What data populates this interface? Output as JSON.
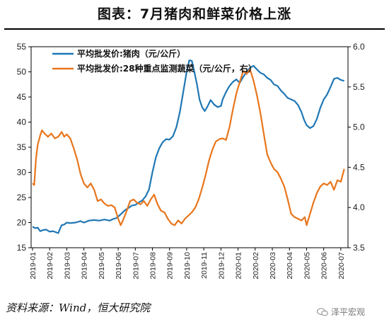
{
  "header": {
    "title": "图表：7月猪肉和鲜菜价格上涨"
  },
  "footer": {
    "source": "资料来源：Wind，恒大研究院",
    "watermark": "泽平宏观"
  },
  "colors": {
    "pork": "#1f77b4",
    "veg": "#e8761c",
    "axis": "#000000"
  },
  "chart_data": {
    "type": "line",
    "x_labels": [
      "2019-01",
      "2019-02",
      "2019-03",
      "2019-04",
      "2019-05",
      "2019-06",
      "2019-07",
      "2019-08",
      "2019-09",
      "2019-10",
      "2019-11",
      "2019-12",
      "2020-01",
      "2020-02",
      "2020-03",
      "2020-04",
      "2020-05",
      "2020-06",
      "2020-07"
    ],
    "y_left": {
      "min": 15,
      "max": 55,
      "ticks": [
        "15",
        "20",
        "25",
        "30",
        "35",
        "40",
        "45",
        "50",
        "55"
      ]
    },
    "y_right": {
      "min": 3.5,
      "max": 6.0,
      "ticks": [
        "3.5",
        "4.0",
        "4.5",
        "5.0",
        "5.5",
        "6.0"
      ]
    },
    "legend_position": "top-left",
    "series": [
      {
        "name": "平均批发价:猪肉（元/公斤）",
        "axis": "left",
        "points": [
          [
            0,
            19.2
          ],
          [
            0.15,
            18.9
          ],
          [
            0.3,
            19.0
          ],
          [
            0.45,
            18.3
          ],
          [
            0.6,
            18.5
          ],
          [
            0.8,
            18.6
          ],
          [
            1.0,
            18.2
          ],
          [
            1.2,
            18.3
          ],
          [
            1.35,
            18.1
          ],
          [
            1.5,
            17.9
          ],
          [
            1.6,
            18.7
          ],
          [
            1.7,
            19.5
          ],
          [
            1.85,
            19.6
          ],
          [
            2.0,
            20.0
          ],
          [
            2.2,
            19.9
          ],
          [
            2.5,
            20.0
          ],
          [
            2.8,
            20.3
          ],
          [
            3.0,
            20.0
          ],
          [
            3.3,
            20.4
          ],
          [
            3.6,
            20.5
          ],
          [
            3.9,
            20.4
          ],
          [
            4.2,
            20.6
          ],
          [
            4.5,
            20.4
          ],
          [
            4.7,
            20.7
          ],
          [
            4.9,
            20.9
          ],
          [
            5.0,
            21.2
          ],
          [
            5.2,
            21.8
          ],
          [
            5.4,
            22.5
          ],
          [
            5.6,
            22.9
          ],
          [
            5.8,
            23.4
          ],
          [
            6.0,
            23.5
          ],
          [
            6.2,
            24.0
          ],
          [
            6.4,
            24.4
          ],
          [
            6.6,
            25.2
          ],
          [
            6.8,
            26.6
          ],
          [
            7.0,
            30.0
          ],
          [
            7.2,
            33.0
          ],
          [
            7.4,
            34.8
          ],
          [
            7.6,
            36.0
          ],
          [
            7.8,
            36.6
          ],
          [
            8.0,
            36.5
          ],
          [
            8.2,
            37.2
          ],
          [
            8.4,
            39.0
          ],
          [
            8.6,
            42.0
          ],
          [
            8.8,
            46.0
          ],
          [
            9.0,
            50.0
          ],
          [
            9.15,
            52.3
          ],
          [
            9.3,
            52.2
          ],
          [
            9.45,
            50.0
          ],
          [
            9.6,
            47.5
          ],
          [
            9.75,
            44.5
          ],
          [
            9.9,
            43.0
          ],
          [
            10.05,
            42.2
          ],
          [
            10.2,
            43.0
          ],
          [
            10.4,
            44.4
          ],
          [
            10.6,
            43.5
          ],
          [
            10.8,
            43.0
          ],
          [
            11.0,
            43.2
          ],
          [
            11.1,
            44.5
          ],
          [
            11.3,
            46.0
          ],
          [
            11.5,
            47.2
          ],
          [
            11.7,
            48.0
          ],
          [
            11.9,
            48.5
          ],
          [
            12.1,
            47.8
          ],
          [
            12.3,
            49.0
          ],
          [
            12.5,
            50.0
          ],
          [
            12.7,
            50.8
          ],
          [
            12.9,
            51.2
          ],
          [
            13.1,
            50.5
          ],
          [
            13.3,
            49.8
          ],
          [
            13.5,
            49.5
          ],
          [
            13.7,
            48.8
          ],
          [
            13.9,
            48.4
          ],
          [
            14.1,
            47.5
          ],
          [
            14.3,
            47.2
          ],
          [
            14.5,
            46.3
          ],
          [
            14.7,
            45.6
          ],
          [
            14.9,
            44.8
          ],
          [
            15.1,
            44.5
          ],
          [
            15.3,
            44.2
          ],
          [
            15.5,
            43.4
          ],
          [
            15.7,
            42.0
          ],
          [
            15.85,
            40.5
          ],
          [
            16.0,
            39.4
          ],
          [
            16.2,
            38.8
          ],
          [
            16.4,
            39.2
          ],
          [
            16.6,
            40.6
          ],
          [
            16.8,
            42.8
          ],
          [
            17.0,
            44.5
          ],
          [
            17.2,
            45.5
          ],
          [
            17.4,
            47.0
          ],
          [
            17.6,
            48.6
          ],
          [
            17.8,
            48.8
          ],
          [
            18.0,
            48.4
          ],
          [
            18.2,
            48.2
          ]
        ]
      },
      {
        "name": "平均批发价:28种重点监测蔬菜（元/公斤，右）",
        "axis": "right",
        "points": [
          [
            0,
            4.3
          ],
          [
            0.1,
            4.28
          ],
          [
            0.2,
            4.6
          ],
          [
            0.3,
            4.78
          ],
          [
            0.45,
            4.9
          ],
          [
            0.55,
            4.96
          ],
          [
            0.7,
            4.92
          ],
          [
            0.9,
            4.88
          ],
          [
            1.1,
            4.92
          ],
          [
            1.3,
            4.86
          ],
          [
            1.5,
            4.88
          ],
          [
            1.7,
            4.94
          ],
          [
            1.85,
            4.88
          ],
          [
            2.0,
            4.91
          ],
          [
            2.2,
            4.86
          ],
          [
            2.4,
            4.74
          ],
          [
            2.6,
            4.6
          ],
          [
            2.8,
            4.42
          ],
          [
            3.0,
            4.3
          ],
          [
            3.2,
            4.25
          ],
          [
            3.4,
            4.3
          ],
          [
            3.6,
            4.22
          ],
          [
            3.8,
            4.08
          ],
          [
            4.0,
            4.1
          ],
          [
            4.2,
            4.05
          ],
          [
            4.4,
            4.02
          ],
          [
            4.6,
            4.03
          ],
          [
            4.8,
            4.0
          ],
          [
            5.0,
            3.86
          ],
          [
            5.15,
            3.78
          ],
          [
            5.3,
            3.85
          ],
          [
            5.5,
            3.96
          ],
          [
            5.7,
            4.08
          ],
          [
            5.9,
            4.1
          ],
          [
            6.1,
            4.06
          ],
          [
            6.3,
            4.04
          ],
          [
            6.5,
            4.08
          ],
          [
            6.7,
            4.02
          ],
          [
            6.9,
            4.1
          ],
          [
            7.1,
            4.16
          ],
          [
            7.3,
            4.04
          ],
          [
            7.5,
            3.96
          ],
          [
            7.7,
            3.94
          ],
          [
            7.9,
            3.86
          ],
          [
            8.1,
            3.8
          ],
          [
            8.3,
            3.78
          ],
          [
            8.5,
            3.84
          ],
          [
            8.7,
            3.8
          ],
          [
            8.9,
            3.86
          ],
          [
            9.1,
            3.9
          ],
          [
            9.3,
            3.94
          ],
          [
            9.5,
            4.0
          ],
          [
            9.7,
            4.1
          ],
          [
            9.9,
            4.24
          ],
          [
            10.1,
            4.4
          ],
          [
            10.3,
            4.58
          ],
          [
            10.5,
            4.72
          ],
          [
            10.7,
            4.82
          ],
          [
            10.9,
            4.85
          ],
          [
            11.1,
            4.86
          ],
          [
            11.3,
            4.84
          ],
          [
            11.5,
            5.0
          ],
          [
            11.7,
            5.22
          ],
          [
            11.9,
            5.42
          ],
          [
            12.1,
            5.56
          ],
          [
            12.3,
            5.7
          ],
          [
            12.5,
            5.66
          ],
          [
            12.7,
            5.72
          ],
          [
            12.9,
            5.58
          ],
          [
            13.1,
            5.4
          ],
          [
            13.3,
            5.18
          ],
          [
            13.5,
            4.92
          ],
          [
            13.7,
            4.66
          ],
          [
            13.9,
            4.56
          ],
          [
            14.1,
            4.48
          ],
          [
            14.3,
            4.44
          ],
          [
            14.5,
            4.36
          ],
          [
            14.7,
            4.26
          ],
          [
            14.9,
            4.1
          ],
          [
            15.1,
            3.92
          ],
          [
            15.3,
            3.88
          ],
          [
            15.5,
            3.86
          ],
          [
            15.7,
            3.84
          ],
          [
            15.9,
            3.88
          ],
          [
            16.0,
            3.78
          ],
          [
            16.2,
            3.92
          ],
          [
            16.4,
            4.06
          ],
          [
            16.6,
            4.18
          ],
          [
            16.8,
            4.26
          ],
          [
            17.0,
            4.3
          ],
          [
            17.2,
            4.28
          ],
          [
            17.4,
            4.32
          ],
          [
            17.6,
            4.22
          ],
          [
            17.8,
            4.34
          ],
          [
            18.0,
            4.32
          ],
          [
            18.2,
            4.48
          ]
        ]
      }
    ]
  }
}
